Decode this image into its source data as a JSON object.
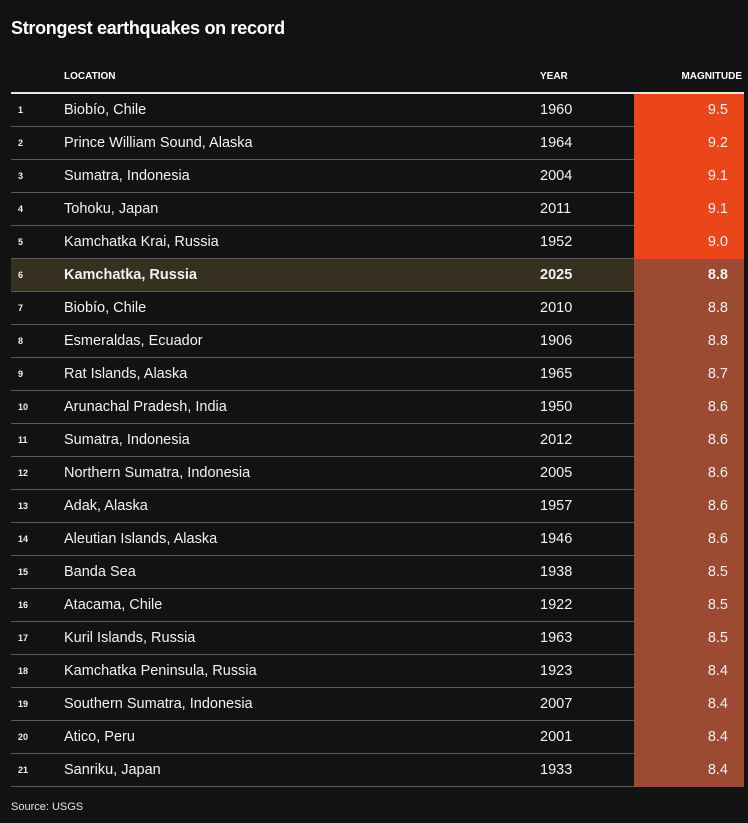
{
  "chart_data": {
    "type": "table",
    "title": "Strongest earthquakes on record",
    "columns": [
      "",
      "LOCATION",
      "YEAR",
      "MAGNITUDE"
    ],
    "rows": [
      {
        "rank": "1",
        "location": "Biobío, Chile",
        "year": "1960",
        "magnitude": "9.5"
      },
      {
        "rank": "2",
        "location": "Prince William Sound, Alaska",
        "year": "1964",
        "magnitude": "9.2"
      },
      {
        "rank": "3",
        "location": "Sumatra, Indonesia",
        "year": "2004",
        "magnitude": "9.1"
      },
      {
        "rank": "4",
        "location": "Tohoku, Japan",
        "year": "2011",
        "magnitude": "9.1"
      },
      {
        "rank": "5",
        "location": "Kamchatka Krai, Russia",
        "year": "1952",
        "magnitude": "9.0"
      },
      {
        "rank": "6",
        "location": "Kamchatka, Russia",
        "year": "2025",
        "magnitude": "8.8",
        "highlight": true
      },
      {
        "rank": "7",
        "location": "Biobío, Chile",
        "year": "2010",
        "magnitude": "8.8"
      },
      {
        "rank": "8",
        "location": "Esmeraldas, Ecuador",
        "year": "1906",
        "magnitude": "8.8"
      },
      {
        "rank": "9",
        "location": "Rat Islands, Alaska",
        "year": "1965",
        "magnitude": "8.7"
      },
      {
        "rank": "10",
        "location": "Arunachal Pradesh, India",
        "year": "1950",
        "magnitude": "8.6"
      },
      {
        "rank": "11",
        "location": "Sumatra, Indonesia",
        "year": "2012",
        "magnitude": "8.6"
      },
      {
        "rank": "12",
        "location": "Northern Sumatra, Indonesia",
        "year": "2005",
        "magnitude": "8.6"
      },
      {
        "rank": "13",
        "location": "Adak, Alaska",
        "year": "1957",
        "magnitude": "8.6"
      },
      {
        "rank": "14",
        "location": "Aleutian Islands, Alaska",
        "year": "1946",
        "magnitude": "8.6"
      },
      {
        "rank": "15",
        "location": "Banda Sea",
        "year": "1938",
        "magnitude": "8.5"
      },
      {
        "rank": "16",
        "location": "Atacama, Chile",
        "year": "1922",
        "magnitude": "8.5"
      },
      {
        "rank": "17",
        "location": "Kuril Islands, Russia",
        "year": "1963",
        "magnitude": "8.5"
      },
      {
        "rank": "18",
        "location": "Kamchatka Peninsula, Russia",
        "year": "1923",
        "magnitude": "8.4"
      },
      {
        "rank": "19",
        "location": "Southern Sumatra, Indonesia",
        "year": "2007",
        "magnitude": "8.4"
      },
      {
        "rank": "20",
        "location": "Atico, Peru",
        "year": "2001",
        "magnitude": "8.4"
      },
      {
        "rank": "21",
        "location": "Sanriku, Japan",
        "year": "1933",
        "magnitude": "8.4"
      }
    ],
    "source": "Source: USGS"
  },
  "colors": {
    "background": "#121212",
    "magnitude_9_plus": "#ea4619",
    "magnitude_below_9": "#9c4a32",
    "highlight_row": "#35301f"
  }
}
